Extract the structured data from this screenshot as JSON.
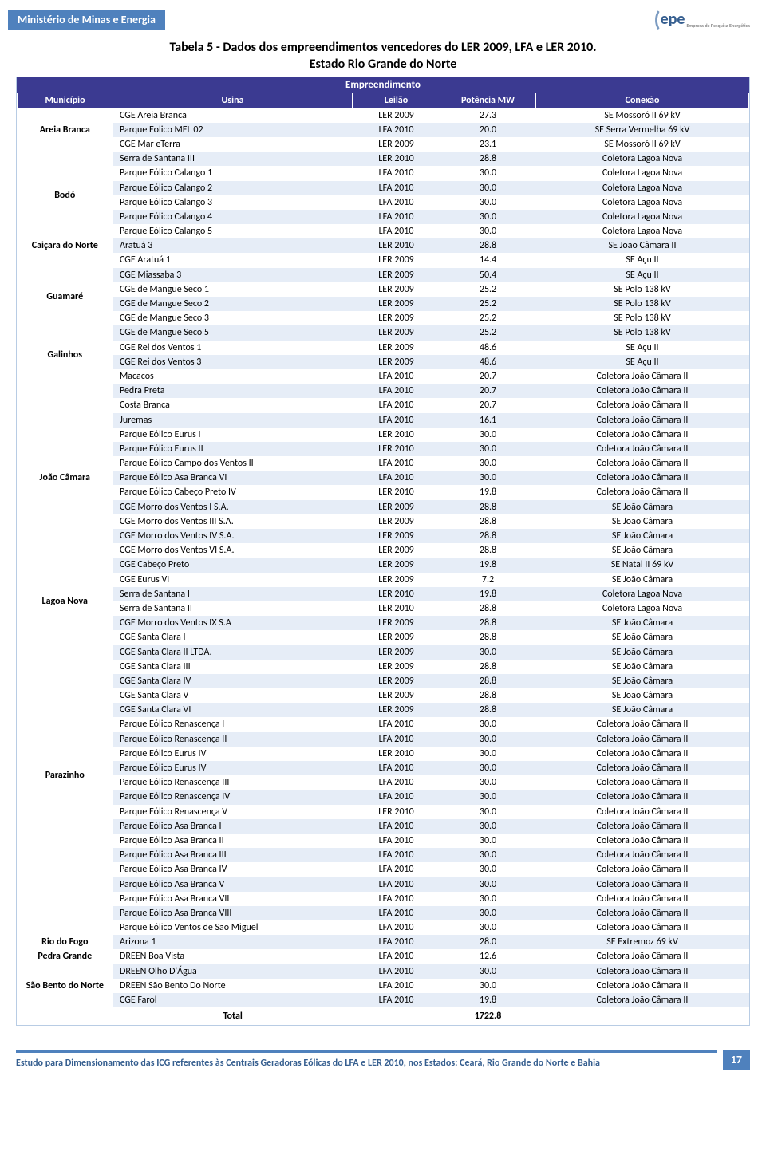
{
  "header": {
    "ministry": "Ministério de Minas e Energia",
    "logo_text": "epe",
    "logo_sub": "Empresa de Pesquisa Energética"
  },
  "title_line1": "Tabela 5 - Dados dos empreendimentos vencedores do LER 2009, LFA e LER 2010.",
  "title_line2": "Estado Rio Grande do Norte",
  "super_header": "Empreendimento",
  "columns": {
    "mun": "Município",
    "usina": "Usina",
    "leilao": "Leilão",
    "pot": "Potência MW",
    "con": "Conexão"
  },
  "footer": {
    "text": "Estudo para Dimensionamento das ICG referentes às Centrais Geradoras Eólicas do LFA e LER 2010, nos Estados: Ceará, Rio Grande do Norte e Bahia",
    "page": "17"
  },
  "total_label": "Total",
  "total_value": "1722.8",
  "groups": [
    {
      "mun": "Areia Branca",
      "rows": [
        {
          "u": "CGE Areia Branca",
          "l": "LER 2009",
          "p": "27.3",
          "c": "SE Mossoró II 69 kV"
        },
        {
          "u": "Parque Eolico MEL 02",
          "l": "LFA 2010",
          "p": "20.0",
          "c": "SE Serra Vermelha 69 kV"
        },
        {
          "u": "CGE Mar eTerra",
          "l": "LER 2009",
          "p": "23.1",
          "c": "SE Mossoró II 69 kV"
        }
      ]
    },
    {
      "mun": "Bodó",
      "rows": [
        {
          "u": "Serra de Santana III",
          "l": "LER 2010",
          "p": "28.8",
          "c": "Coletora Lagoa Nova"
        },
        {
          "u": "Parque Eólico Calango 1",
          "l": "LFA 2010",
          "p": "30.0",
          "c": "Coletora Lagoa Nova"
        },
        {
          "u": "Parque Eólico Calango 2",
          "l": "LFA 2010",
          "p": "30.0",
          "c": "Coletora Lagoa Nova"
        },
        {
          "u": "Parque Eólico Calango 3",
          "l": "LFA 2010",
          "p": "30.0",
          "c": "Coletora Lagoa Nova"
        },
        {
          "u": "Parque Eólico Calango 4",
          "l": "LFA 2010",
          "p": "30.0",
          "c": "Coletora Lagoa Nova"
        },
        {
          "u": "Parque Eólico Calango 5",
          "l": "LFA 2010",
          "p": "30.0",
          "c": "Coletora Lagoa Nova"
        }
      ]
    },
    {
      "mun": "Caiçara do Norte",
      "rows": [
        {
          "u": "Aratuá 3",
          "l": "LER 2010",
          "p": "28.8",
          "c": "SE João Câmara II"
        }
      ]
    },
    {
      "mun": "Guamaré",
      "rows": [
        {
          "u": "CGE Aratuá 1",
          "l": "LER 2009",
          "p": "14.4",
          "c": "SE Açu II"
        },
        {
          "u": "CGE Miassaba 3",
          "l": "LER 2009",
          "p": "50.4",
          "c": "SE Açu II"
        },
        {
          "u": "CGE de Mangue Seco 1",
          "l": "LER 2009",
          "p": "25.2",
          "c": "SE Polo 138 kV"
        },
        {
          "u": "CGE de Mangue Seco 2",
          "l": "LER 2009",
          "p": "25.2",
          "c": "SE Polo 138 kV"
        },
        {
          "u": "CGE de Mangue Seco 3",
          "l": "LER 2009",
          "p": "25.2",
          "c": "SE Polo 138 kV"
        },
        {
          "u": "CGE de Mangue Seco 5",
          "l": "LER 2009",
          "p": "25.2",
          "c": "SE Polo 138 kV"
        }
      ]
    },
    {
      "mun": "Galinhos",
      "rows": [
        {
          "u": "CGE Rei dos Ventos 1",
          "l": "LER 2009",
          "p": "48.6",
          "c": "SE Açu II"
        },
        {
          "u": "CGE Rei dos Ventos 3",
          "l": "LER 2009",
          "p": "48.6",
          "c": "SE Açu II"
        }
      ]
    },
    {
      "mun": "João Câmara",
      "rows": [
        {
          "u": "Macacos",
          "l": "LFA 2010",
          "p": "20.7",
          "c": "Coletora João Câmara II"
        },
        {
          "u": "Pedra Preta",
          "l": "LFA 2010",
          "p": "20.7",
          "c": "Coletora João Câmara II"
        },
        {
          "u": "Costa Branca",
          "l": "LFA 2010",
          "p": "20.7",
          "c": "Coletora João Câmara II"
        },
        {
          "u": "Juremas",
          "l": "LFA 2010",
          "p": "16.1",
          "c": "Coletora João Câmara II"
        },
        {
          "u": "Parque Eólico Eurus I",
          "l": "LER 2010",
          "p": "30.0",
          "c": "Coletora João Câmara II"
        },
        {
          "u": "Parque Eólico Eurus II",
          "l": "LER 2010",
          "p": "30.0",
          "c": "Coletora João Câmara II"
        },
        {
          "u": "Parque Eólico Campo dos Ventos II",
          "l": "LFA 2010",
          "p": "30.0",
          "c": "Coletora João Câmara II"
        },
        {
          "u": "Parque Eólico Asa Branca VI",
          "l": "LFA 2010",
          "p": "30.0",
          "c": "Coletora João Câmara II"
        },
        {
          "u": "Parque Eólico Cabeço Preto IV",
          "l": "LER 2010",
          "p": "19.8",
          "c": "Coletora João Câmara II"
        },
        {
          "u": "CGE Morro dos Ventos I S.A.",
          "l": "LER 2009",
          "p": "28.8",
          "c": "SE João Câmara"
        },
        {
          "u": "CGE Morro dos Ventos III S.A.",
          "l": "LER 2009",
          "p": "28.8",
          "c": "SE João Câmara"
        },
        {
          "u": "CGE Morro dos Ventos IV S.A.",
          "l": "LER 2009",
          "p": "28.8",
          "c": "SE João Câmara"
        },
        {
          "u": "CGE Morro dos Ventos VI S.A.",
          "l": "LER 2009",
          "p": "28.8",
          "c": "SE João Câmara"
        },
        {
          "u": "CGE Cabeço Preto",
          "l": "LER 2009",
          "p": "19.8",
          "c": "SE Natal II 69 kV"
        },
        {
          "u": "CGE Eurus VI",
          "l": "LER 2009",
          "p": "7.2",
          "c": "SE João Câmara"
        }
      ]
    },
    {
      "mun": "Lagoa Nova",
      "rows": [
        {
          "u": "Serra de Santana I",
          "l": "LER 2010",
          "p": "19.8",
          "c": "Coletora Lagoa Nova"
        },
        {
          "u": "Serra de Santana II",
          "l": "LER 2010",
          "p": "28.8",
          "c": "Coletora Lagoa Nova"
        }
      ]
    },
    {
      "mun": "Parazinho",
      "rows": [
        {
          "u": "CGE Morro dos Ventos IX S.A",
          "l": "LER 2009",
          "p": "28.8",
          "c": "SE João Câmara"
        },
        {
          "u": "CGE Santa Clara I",
          "l": "LER 2009",
          "p": "28.8",
          "c": "SE João Câmara"
        },
        {
          "u": "CGE Santa Clara II LTDA.",
          "l": "LER 2009",
          "p": "30.0",
          "c": "SE João Câmara"
        },
        {
          "u": "CGE Santa Clara III",
          "l": "LER 2009",
          "p": "28.8",
          "c": "SE João Câmara"
        },
        {
          "u": "CGE Santa Clara IV",
          "l": "LER 2009",
          "p": "28.8",
          "c": "SE João Câmara"
        },
        {
          "u": "CGE Santa Clara V",
          "l": "LER 2009",
          "p": "28.8",
          "c": "SE João Câmara"
        },
        {
          "u": "CGE Santa Clara VI",
          "l": "LER 2009",
          "p": "28.8",
          "c": "SE João Câmara"
        },
        {
          "u": "Parque Eólico Renascença I",
          "l": "LFA 2010",
          "p": "30.0",
          "c": "Coletora João Câmara II"
        },
        {
          "u": "Parque Eólico Renascença II",
          "l": "LFA 2010",
          "p": "30.0",
          "c": "Coletora João Câmara II"
        },
        {
          "u": "Parque Eólico Eurus IV",
          "l": "LER 2010",
          "p": "30.0",
          "c": "Coletora João Câmara II"
        },
        {
          "u": "Parque Eólico Eurus IV",
          "l": "LFA 2010",
          "p": "30.0",
          "c": "Coletora João Câmara II"
        },
        {
          "u": "Parque Eólico Renascença III",
          "l": "LFA 2010",
          "p": "30.0",
          "c": "Coletora João Câmara II"
        },
        {
          "u": "Parque Eólico Renascença IV",
          "l": "LFA 2010",
          "p": "30.0",
          "c": "Coletora João Câmara II"
        },
        {
          "u": "Parque Eólico Renascença V",
          "l": "LER 2010",
          "p": "30.0",
          "c": "Coletora João Câmara II"
        },
        {
          "u": "Parque Eólico Asa Branca I",
          "l": "LFA 2010",
          "p": "30.0",
          "c": "Coletora João Câmara II"
        },
        {
          "u": "Parque Eólico Asa Branca II",
          "l": "LFA 2010",
          "p": "30.0",
          "c": "Coletora João Câmara II"
        },
        {
          "u": "Parque Eólico Asa Branca III",
          "l": "LFA 2010",
          "p": "30.0",
          "c": "Coletora João Câmara II"
        },
        {
          "u": "Parque Eólico Asa Branca IV",
          "l": "LFA 2010",
          "p": "30.0",
          "c": "Coletora João Câmara II"
        },
        {
          "u": "Parque Eólico Asa Branca V",
          "l": "LFA 2010",
          "p": "30.0",
          "c": "Coletora João Câmara II"
        },
        {
          "u": "Parque Eólico Asa Branca VII",
          "l": "LFA 2010",
          "p": "30.0",
          "c": "Coletora João Câmara II"
        },
        {
          "u": "Parque Eólico Asa Branca VIII",
          "l": "LFA 2010",
          "p": "30.0",
          "c": "Coletora João Câmara II"
        },
        {
          "u": "Parque Eólico Ventos de São Miguel",
          "l": "LFA 2010",
          "p": "30.0",
          "c": "Coletora João Câmara II"
        }
      ]
    },
    {
      "mun": "Rio do Fogo",
      "rows": [
        {
          "u": "Arizona 1",
          "l": "LFA 2010",
          "p": "28.0",
          "c": "SE Extremoz 69 kV"
        }
      ]
    },
    {
      "mun": "Pedra Grande",
      "rows": [
        {
          "u": "DREEN Boa Vista",
          "l": "LFA 2010",
          "p": "12.6",
          "c": "Coletora João Câmara II"
        }
      ]
    },
    {
      "mun": "São Bento do Norte",
      "rows": [
        {
          "u": "DREEN Olho D'Água",
          "l": "LFA 2010",
          "p": "30.0",
          "c": "Coletora João Câmara II"
        },
        {
          "u": "DREEN São Bento Do Norte",
          "l": "LFA 2010",
          "p": "30.0",
          "c": "Coletora João Câmara II"
        },
        {
          "u": "CGE Farol",
          "l": "LFA 2010",
          "p": "19.8",
          "c": "Coletora João Câmara II"
        }
      ]
    }
  ]
}
